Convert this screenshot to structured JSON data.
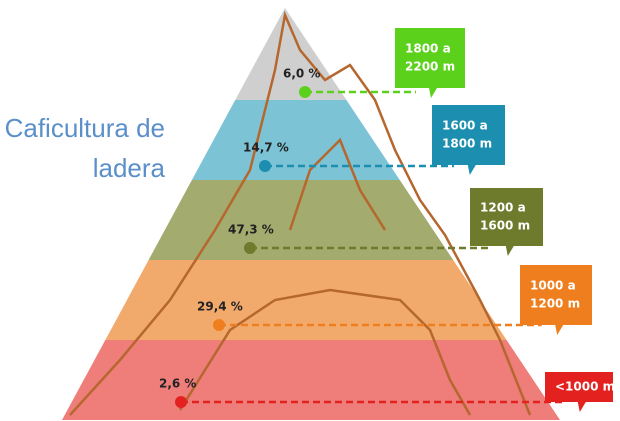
{
  "chart_data": {
    "type": "pyramid",
    "title": [
      "Caficultura de",
      "ladera"
    ],
    "categories": [
      [
        "1800 a",
        "2200 m"
      ],
      [
        "1600 a",
        "1800 m"
      ],
      [
        "1200 a",
        "1600 m"
      ],
      [
        "1000 a",
        "1200 m"
      ],
      [
        "<1000 m"
      ]
    ],
    "values": [
      6.0,
      14.7,
      47.3,
      29.4,
      2.6
    ],
    "value_labels": [
      "6,0 %",
      "14,7 %",
      "47,3 %",
      "29,4 %",
      "2,6 %"
    ],
    "band_colors": [
      "#cfcfcf",
      "#7cc3d6",
      "#a3ab6e",
      "#f2aa6c",
      "#ef7d7a"
    ],
    "colors": [
      "#5cd11c",
      "#1c8fb0",
      "#6e7a2c",
      "#ef7f1e",
      "#e3221f"
    ]
  }
}
